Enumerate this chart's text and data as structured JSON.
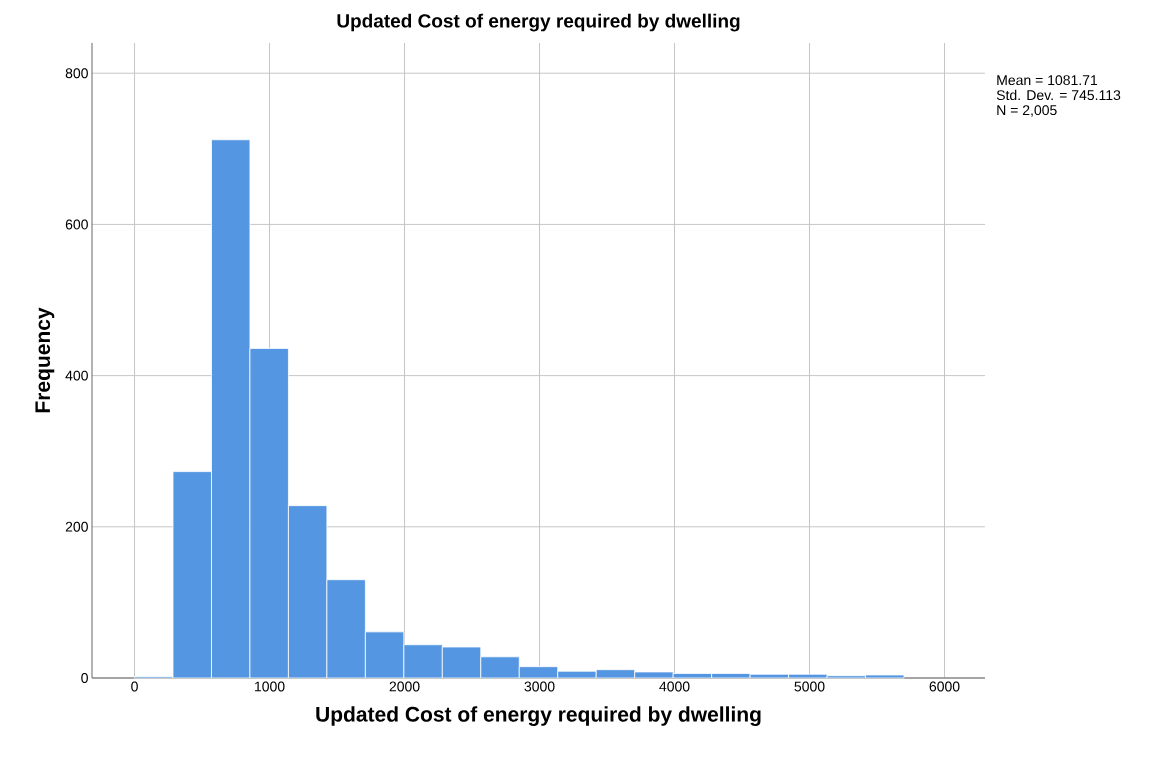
{
  "chart_data": {
    "type": "histogram",
    "title": "Updated Cost of energy required by dwelling",
    "xlabel": "Updated Cost of energy required by dwelling",
    "ylabel": "Frequency",
    "bins": [
      0,
      285,
      570,
      855,
      1140,
      1425,
      1710,
      1995,
      2280,
      2565,
      2850,
      3135,
      3420,
      3705,
      3990,
      4275,
      4560,
      4845,
      5130,
      5415,
      5700
    ],
    "values": [
      2,
      273,
      712,
      436,
      228,
      130,
      61,
      44,
      41,
      28,
      15,
      9,
      11,
      8,
      6,
      6,
      5,
      5,
      3,
      4
    ],
    "color": "#5596e2",
    "xlim": [
      -315,
      6300
    ],
    "ylim": [
      0,
      840
    ],
    "xticks": [
      0,
      1000,
      2000,
      3000,
      4000,
      5000,
      6000
    ],
    "yticks": [
      0,
      200,
      400,
      600,
      800
    ],
    "grid": true,
    "annotations": [
      "Mean = 1081.71",
      "Std. Dev. = 745.113",
      "N = 2,005"
    ]
  }
}
